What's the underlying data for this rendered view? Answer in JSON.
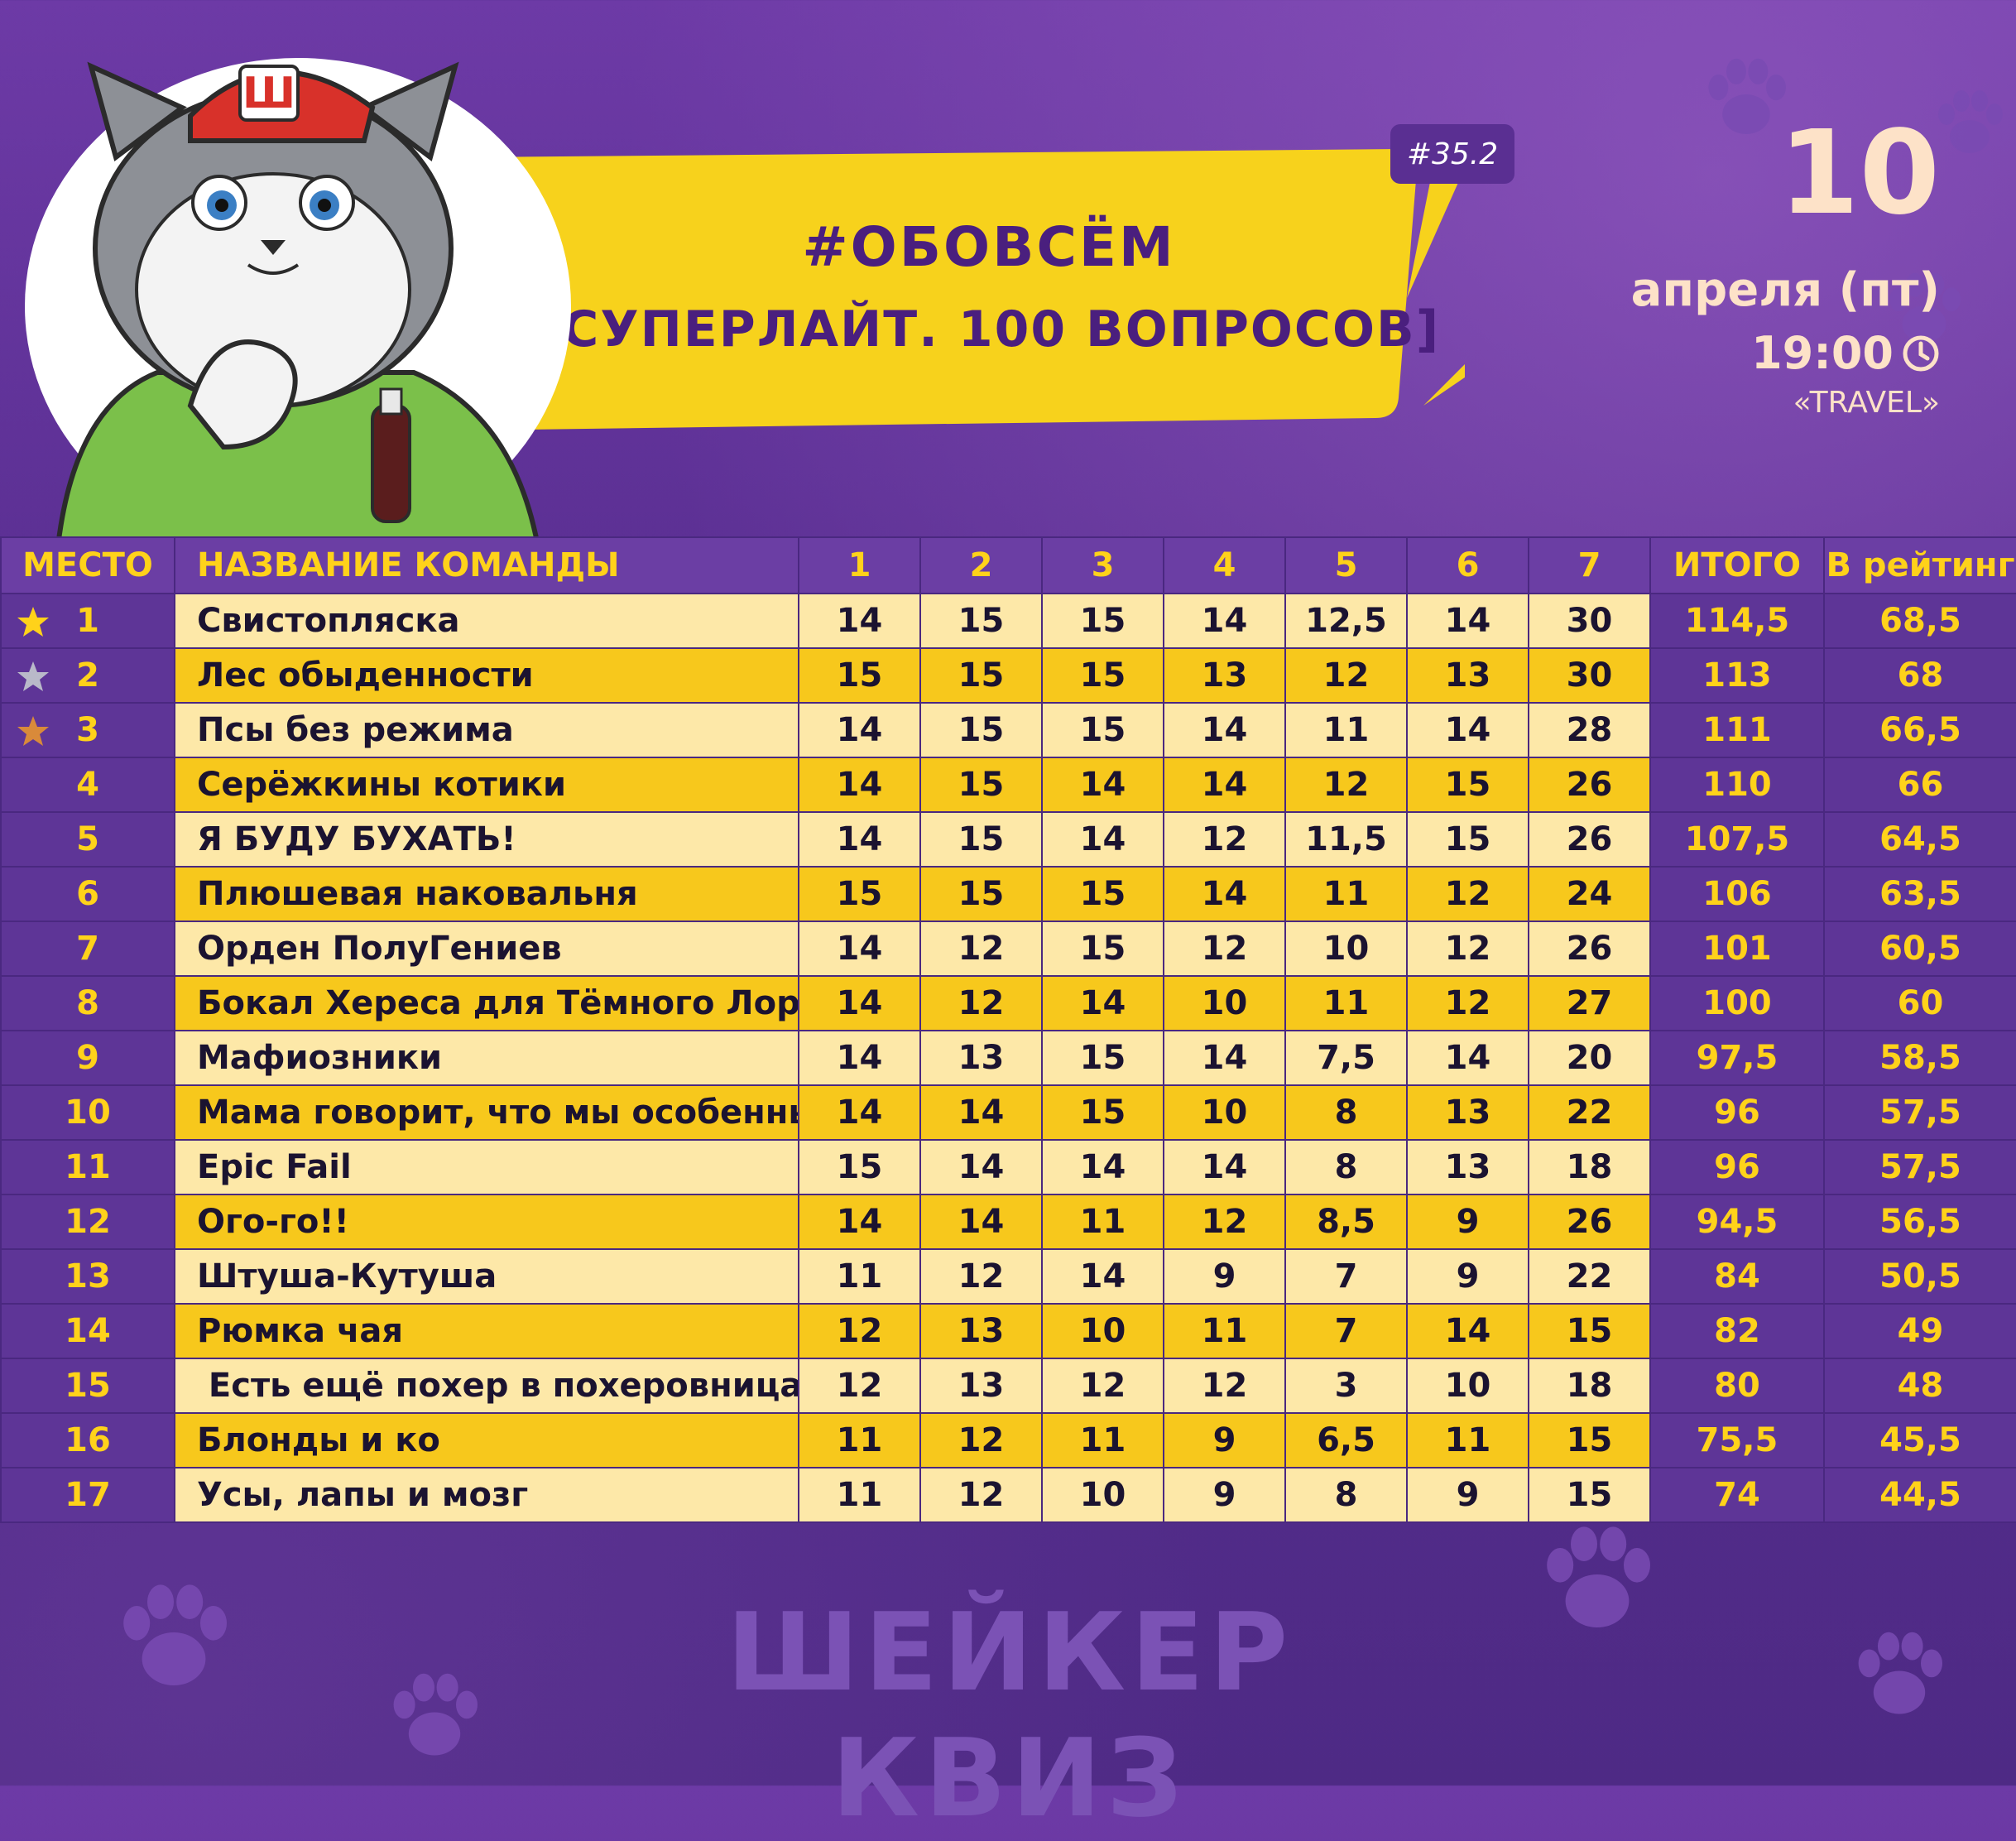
{
  "badge": "#35.2",
  "title": {
    "line1": "#ОБОВСЁМ",
    "line2": "[СУПЕРЛАЙТ. 100 ВОПРОСОВ]"
  },
  "event": {
    "day_number": "10",
    "day_text": "апреля (пт)",
    "time": "19:00",
    "venue": "«TRAVEL»"
  },
  "table": {
    "headers": [
      "МЕСТО",
      "НАЗВАНИЕ КОМАНДЫ",
      "1",
      "2",
      "3",
      "4",
      "5",
      "6",
      "7",
      "ИТОГО",
      "В рейтинг"
    ],
    "rows": [
      {
        "place": "1",
        "name": "Свистопляска",
        "scores": [
          "14",
          "15",
          "15",
          "14",
          "12,5",
          "14",
          "30"
        ],
        "total": "114,5",
        "rating": "68,5",
        "medal": "gold"
      },
      {
        "place": "2",
        "name": "Лес обыденности",
        "scores": [
          "15",
          "15",
          "15",
          "13",
          "12",
          "13",
          "30"
        ],
        "total": "113",
        "rating": "68",
        "medal": "silver"
      },
      {
        "place": "3",
        "name": "Псы без режима",
        "scores": [
          "14",
          "15",
          "15",
          "14",
          "11",
          "14",
          "28"
        ],
        "total": "111",
        "rating": "66,5",
        "medal": "bronze"
      },
      {
        "place": "4",
        "name": "Серёжкины котики",
        "scores": [
          "14",
          "15",
          "14",
          "14",
          "12",
          "15",
          "26"
        ],
        "total": "110",
        "rating": "66"
      },
      {
        "place": "5",
        "name": "Я БУДУ БУХАТЬ!",
        "scores": [
          "14",
          "15",
          "14",
          "12",
          "11,5",
          "15",
          "26"
        ],
        "total": "107,5",
        "rating": "64,5"
      },
      {
        "place": "6",
        "name": "Плюшевая наковальня",
        "scores": [
          "15",
          "15",
          "15",
          "14",
          "11",
          "12",
          "24"
        ],
        "total": "106",
        "rating": "63,5"
      },
      {
        "place": "7",
        "name": "Орден ПолуГениев",
        "scores": [
          "14",
          "12",
          "15",
          "12",
          "10",
          "12",
          "26"
        ],
        "total": "101",
        "rating": "60,5"
      },
      {
        "place": "8",
        "name": "Бокал Хереса для Тёмного Лорда",
        "scores": [
          "14",
          "12",
          "14",
          "10",
          "11",
          "12",
          "27"
        ],
        "total": "100",
        "rating": "60"
      },
      {
        "place": "9",
        "name": "Мафиозники",
        "scores": [
          "14",
          "13",
          "15",
          "14",
          "7,5",
          "14",
          "20"
        ],
        "total": "97,5",
        "rating": "58,5"
      },
      {
        "place": "10",
        "name": "Мама говорит, что мы особенные",
        "scores": [
          "14",
          "14",
          "15",
          "10",
          "8",
          "13",
          "22"
        ],
        "total": "96",
        "rating": "57,5"
      },
      {
        "place": "11",
        "name": "Epic Fail",
        "scores": [
          "15",
          "14",
          "14",
          "14",
          "8",
          "13",
          "18"
        ],
        "total": "96",
        "rating": "57,5"
      },
      {
        "place": "12",
        "name": "Ого-го!!",
        "scores": [
          "14",
          "14",
          "11",
          "12",
          "8,5",
          "9",
          "26"
        ],
        "total": "94,5",
        "rating": "56,5"
      },
      {
        "place": "13",
        "name": "Штуша-Кутуша",
        "scores": [
          "11",
          "12",
          "14",
          "9",
          "7",
          "9",
          "22"
        ],
        "total": "84",
        "rating": "50,5"
      },
      {
        "place": "14",
        "name": "Рюмка чая",
        "scores": [
          "12",
          "13",
          "10",
          "11",
          "7",
          "14",
          "15"
        ],
        "total": "82",
        "rating": "49"
      },
      {
        "place": "15",
        "name": " Есть ещё похер в похеровницах!",
        "scores": [
          "12",
          "13",
          "12",
          "12",
          "3",
          "10",
          "18"
        ],
        "total": "80",
        "rating": "48"
      },
      {
        "place": "16",
        "name": "Блонды и ко",
        "scores": [
          "11",
          "12",
          "11",
          "9",
          "6,5",
          "11",
          "15"
        ],
        "total": "75,5",
        "rating": "45,5"
      },
      {
        "place": "17",
        "name": "Усы, лапы и мозг",
        "scores": [
          "11",
          "12",
          "10",
          "9",
          "8",
          "9",
          "15"
        ],
        "total": "74",
        "rating": "44,5"
      }
    ]
  },
  "footer": {
    "logo_text": "ШЕЙКЕР КВИЗ"
  },
  "colors": {
    "gold": "#ffd21a",
    "silver": "#b9b9c9",
    "bronze": "#d98a3a",
    "purple": "#5e3597"
  },
  "icons": {
    "time": "clock-icon",
    "medal": "star-icon",
    "decor": "paw-icon"
  }
}
